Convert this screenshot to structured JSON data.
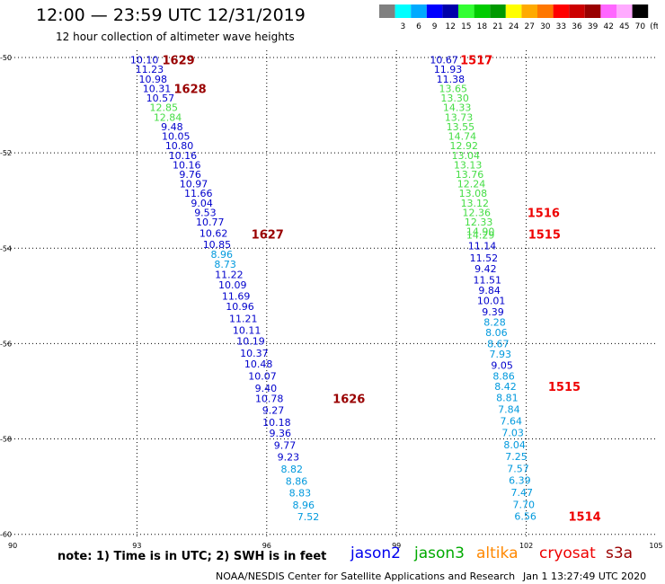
{
  "header": {
    "title": "12:00 — 23:59 UTC 12/31/2019",
    "subtitle": "12 hour collection of altimeter wave heights"
  },
  "legend": {
    "swatches": [
      {
        "color": "#808080",
        "label": ""
      },
      {
        "color": "#00ffff",
        "label": "3"
      },
      {
        "color": "#00aaff",
        "label": "6"
      },
      {
        "color": "#0000ff",
        "label": "9"
      },
      {
        "color": "#0000aa",
        "label": "12"
      },
      {
        "color": "#33ff33",
        "label": "15"
      },
      {
        "color": "#00cc00",
        "label": "18"
      },
      {
        "color": "#009900",
        "label": "21"
      },
      {
        "color": "#ffff00",
        "label": "24"
      },
      {
        "color": "#ffaa00",
        "label": "27"
      },
      {
        "color": "#ff7700",
        "label": "30"
      },
      {
        "color": "#ff0000",
        "label": "33"
      },
      {
        "color": "#cc0000",
        "label": "36"
      },
      {
        "color": "#990000",
        "label": "39"
      },
      {
        "color": "#ff66ff",
        "label": "42"
      },
      {
        "color": "#ffaaff",
        "label": "45"
      },
      {
        "color": "#000000",
        "label": "70"
      }
    ],
    "unit": "(ft)"
  },
  "chart_data": {
    "type": "scatter",
    "x_ticks": [
      "90",
      "93",
      "96",
      "99",
      "102",
      "105"
    ],
    "y_ticks": [
      "-50",
      "-52",
      "-54",
      "-56",
      "-58",
      "-60"
    ],
    "xlim": [
      90,
      105
    ],
    "ylim": [
      -60.1,
      -49.85
    ],
    "grid": true,
    "series": [
      {
        "points": [
          {
            "x": 93.17,
            "y": -50.05,
            "v": "10.10",
            "c": "#0000cc"
          },
          {
            "x": 93.29,
            "y": -50.25,
            "v": "11.23",
            "c": "#0000cc"
          },
          {
            "x": 93.37,
            "y": -50.45,
            "v": "10.98",
            "c": "#0000cc"
          },
          {
            "x": 93.46,
            "y": -50.65,
            "v": "10.31",
            "c": "#0000cc"
          },
          {
            "x": 93.54,
            "y": -50.85,
            "v": "10.57",
            "c": "#0000cc"
          },
          {
            "x": 93.62,
            "y": -51.05,
            "v": "12.85",
            "c": "#44dd44"
          },
          {
            "x": 93.71,
            "y": -51.25,
            "v": "12.84",
            "c": "#44dd44"
          },
          {
            "x": 93.81,
            "y": -51.45,
            "v": "9.48",
            "c": "#0000cc"
          },
          {
            "x": 93.9,
            "y": -51.65,
            "v": "10.05",
            "c": "#0000cc"
          },
          {
            "x": 93.98,
            "y": -51.85,
            "v": "10.80",
            "c": "#0000cc"
          },
          {
            "x": 94.06,
            "y": -52.05,
            "v": "10.16",
            "c": "#0000cc"
          },
          {
            "x": 94.15,
            "y": -52.25,
            "v": "10.16",
            "c": "#0000cc"
          },
          {
            "x": 94.23,
            "y": -52.45,
            "v": "9.76",
            "c": "#0000cc"
          },
          {
            "x": 94.31,
            "y": -52.65,
            "v": "10.97",
            "c": "#0000cc"
          },
          {
            "x": 94.42,
            "y": -52.85,
            "v": "11.66",
            "c": "#0000cc"
          },
          {
            "x": 94.5,
            "y": -53.05,
            "v": "9.04",
            "c": "#0000cc"
          },
          {
            "x": 94.58,
            "y": -53.25,
            "v": "9.53",
            "c": "#0000cc"
          },
          {
            "x": 94.69,
            "y": -53.45,
            "v": "10.77",
            "c": "#0000cc"
          },
          {
            "x": 94.77,
            "y": -53.68,
            "v": "10.62",
            "c": "#0000cc"
          },
          {
            "x": 94.85,
            "y": -53.92,
            "v": "10.85",
            "c": "#0000cc"
          },
          {
            "x": 94.96,
            "y": -54.13,
            "v": "8.96",
            "c": "#0099dd"
          },
          {
            "x": 95.04,
            "y": -54.33,
            "v": "8.73",
            "c": "#0099dd"
          },
          {
            "x": 95.13,
            "y": -54.55,
            "v": "11.22",
            "c": "#0000cc"
          },
          {
            "x": 95.21,
            "y": -54.77,
            "v": "10.09",
            "c": "#0000cc"
          },
          {
            "x": 95.29,
            "y": -55.0,
            "v": "11.69",
            "c": "#0000cc"
          },
          {
            "x": 95.38,
            "y": -55.22,
            "v": "10.96",
            "c": "#0000cc"
          },
          {
            "x": 95.46,
            "y": -55.47,
            "v": "11.21",
            "c": "#0000cc"
          },
          {
            "x": 95.54,
            "y": -55.72,
            "v": "10.11",
            "c": "#0000cc"
          },
          {
            "x": 95.63,
            "y": -55.95,
            "v": "10.19",
            "c": "#0000cc"
          },
          {
            "x": 95.71,
            "y": -56.2,
            "v": "10.37",
            "c": "#0000cc"
          },
          {
            "x": 95.81,
            "y": -56.43,
            "v": "10.48",
            "c": "#0000cc"
          },
          {
            "x": 95.9,
            "y": -56.68,
            "v": "10.07",
            "c": "#0000cc"
          },
          {
            "x": 95.98,
            "y": -56.93,
            "v": "9.40",
            "c": "#0000cc"
          },
          {
            "x": 96.06,
            "y": -57.15,
            "v": "10.78",
            "c": "#0000cc"
          },
          {
            "x": 96.15,
            "y": -57.4,
            "v": "9.27",
            "c": "#0000cc"
          },
          {
            "x": 96.23,
            "y": -57.65,
            "v": "10.18",
            "c": "#0000cc"
          },
          {
            "x": 96.31,
            "y": -57.88,
            "v": "9.36",
            "c": "#0000cc"
          },
          {
            "x": 96.42,
            "y": -58.13,
            "v": "9.77",
            "c": "#0000cc"
          },
          {
            "x": 96.5,
            "y": -58.38,
            "v": "9.23",
            "c": "#0000cc"
          },
          {
            "x": 96.58,
            "y": -58.63,
            "v": "8.82",
            "c": "#0099dd"
          },
          {
            "x": 96.69,
            "y": -58.88,
            "v": "8.86",
            "c": "#0099dd"
          },
          {
            "x": 96.77,
            "y": -59.13,
            "v": "8.83",
            "c": "#0099dd"
          },
          {
            "x": 96.85,
            "y": -59.38,
            "v": "8.96",
            "c": "#0099dd"
          },
          {
            "x": 96.96,
            "y": -59.63,
            "v": "7.52",
            "c": "#0099dd"
          }
        ]
      },
      {
        "points": [
          {
            "x": 100.1,
            "y": -50.05,
            "v": "10.67",
            "c": "#0000cc"
          },
          {
            "x": 100.19,
            "y": -50.25,
            "v": "11.93",
            "c": "#0000cc"
          },
          {
            "x": 100.25,
            "y": -50.45,
            "v": "11.38",
            "c": "#0000cc"
          },
          {
            "x": 100.31,
            "y": -50.65,
            "v": "13.65",
            "c": "#44dd44"
          },
          {
            "x": 100.35,
            "y": -50.85,
            "v": "13.30",
            "c": "#44dd44"
          },
          {
            "x": 100.4,
            "y": -51.05,
            "v": "14.33",
            "c": "#44dd44"
          },
          {
            "x": 100.44,
            "y": -51.25,
            "v": "13.73",
            "c": "#44dd44"
          },
          {
            "x": 100.48,
            "y": -51.45,
            "v": "13.55",
            "c": "#44dd44"
          },
          {
            "x": 100.52,
            "y": -51.65,
            "v": "14.74",
            "c": "#44dd44"
          },
          {
            "x": 100.56,
            "y": -51.85,
            "v": "12.92",
            "c": "#44dd44"
          },
          {
            "x": 100.6,
            "y": -52.05,
            "v": "13.04",
            "c": "#44dd44"
          },
          {
            "x": 100.65,
            "y": -52.25,
            "v": "13.13",
            "c": "#44dd44"
          },
          {
            "x": 100.69,
            "y": -52.45,
            "v": "13.76",
            "c": "#44dd44"
          },
          {
            "x": 100.73,
            "y": -52.65,
            "v": "12.24",
            "c": "#44dd44"
          },
          {
            "x": 100.77,
            "y": -52.85,
            "v": "13.08",
            "c": "#44dd44"
          },
          {
            "x": 100.81,
            "y": -53.05,
            "v": "13.12",
            "c": "#44dd44"
          },
          {
            "x": 100.85,
            "y": -53.25,
            "v": "12.36",
            "c": "#44dd44"
          },
          {
            "x": 100.9,
            "y": -53.45,
            "v": "12.33",
            "c": "#44dd44"
          },
          {
            "x": 100.94,
            "y": -53.65,
            "v": "14.90",
            "c": "#44dd44"
          },
          {
            "x": 100.94,
            "y": -53.72,
            "v": "14.29",
            "c": "#44dd44"
          },
          {
            "x": 100.98,
            "y": -53.95,
            "v": "11.14",
            "c": "#0000cc"
          },
          {
            "x": 101.02,
            "y": -54.2,
            "v": "11.52",
            "c": "#0000cc"
          },
          {
            "x": 101.06,
            "y": -54.43,
            "v": "9.42",
            "c": "#0000cc"
          },
          {
            "x": 101.1,
            "y": -54.66,
            "v": "11.51",
            "c": "#0000cc"
          },
          {
            "x": 101.15,
            "y": -54.88,
            "v": "9.84",
            "c": "#0000cc"
          },
          {
            "x": 101.19,
            "y": -55.1,
            "v": "10.01",
            "c": "#0000cc"
          },
          {
            "x": 101.23,
            "y": -55.33,
            "v": "9.39",
            "c": "#0000cc"
          },
          {
            "x": 101.27,
            "y": -55.55,
            "v": "8.28",
            "c": "#0099dd"
          },
          {
            "x": 101.31,
            "y": -55.77,
            "v": "8.06",
            "c": "#0099dd"
          },
          {
            "x": 101.35,
            "y": -56.0,
            "v": "8.67",
            "c": "#0099dd"
          },
          {
            "x": 101.4,
            "y": -56.22,
            "v": "7.93",
            "c": "#0099dd"
          },
          {
            "x": 101.44,
            "y": -56.45,
            "v": "9.05",
            "c": "#0000cc"
          },
          {
            "x": 101.48,
            "y": -56.68,
            "v": "8.86",
            "c": "#0099dd"
          },
          {
            "x": 101.52,
            "y": -56.9,
            "v": "8.42",
            "c": "#0099dd"
          },
          {
            "x": 101.56,
            "y": -57.13,
            "v": "8.81",
            "c": "#0099dd"
          },
          {
            "x": 101.6,
            "y": -57.38,
            "v": "7.84",
            "c": "#0099dd"
          },
          {
            "x": 101.65,
            "y": -57.62,
            "v": "7.64",
            "c": "#0099dd"
          },
          {
            "x": 101.69,
            "y": -57.87,
            "v": "7.03",
            "c": "#0099dd"
          },
          {
            "x": 101.73,
            "y": -58.12,
            "v": "8.04",
            "c": "#0099dd"
          },
          {
            "x": 101.77,
            "y": -58.37,
            "v": "7.25",
            "c": "#0099dd"
          },
          {
            "x": 101.81,
            "y": -58.62,
            "v": "7.57",
            "c": "#0099dd"
          },
          {
            "x": 101.85,
            "y": -58.87,
            "v": "6.39",
            "c": "#0099dd"
          },
          {
            "x": 101.9,
            "y": -59.12,
            "v": "7.47",
            "c": "#0099dd"
          },
          {
            "x": 101.94,
            "y": -59.37,
            "v": "7.70",
            "c": "#0099dd"
          },
          {
            "x": 101.98,
            "y": -59.62,
            "v": "6.56",
            "c": "#0099dd"
          }
        ]
      }
    ],
    "annotations": [
      {
        "x": 93.96,
        "y": -50.05,
        "text": "1629",
        "c": "#990000"
      },
      {
        "x": 94.23,
        "y": -50.65,
        "text": "1628",
        "c": "#990000"
      },
      {
        "x": 96.02,
        "y": -53.7,
        "text": "1627",
        "c": "#990000"
      },
      {
        "x": 97.9,
        "y": -57.15,
        "text": "1626",
        "c": "#990000"
      },
      {
        "x": 100.85,
        "y": -50.05,
        "text": "1517",
        "c": "#ee0000"
      },
      {
        "x": 102.4,
        "y": -53.25,
        "text": "1516",
        "c": "#ee0000"
      },
      {
        "x": 102.42,
        "y": -53.7,
        "text": "1515",
        "c": "#ee0000"
      },
      {
        "x": 102.88,
        "y": -56.9,
        "text": "1515",
        "c": "#ee0000"
      },
      {
        "x": 103.35,
        "y": -59.62,
        "text": "1514",
        "c": "#ee0000"
      }
    ]
  },
  "footer": {
    "note": "note: 1) Time is in UTC; 2) SWH is in feet",
    "satellites": [
      {
        "name": "jason2",
        "color": "#0000ee"
      },
      {
        "name": "jason3",
        "color": "#00aa00"
      },
      {
        "name": "altika",
        "color": "#ff8800"
      },
      {
        "name": "cryosat",
        "color": "#ee0000"
      },
      {
        "name": "s3a",
        "color": "#990000"
      }
    ],
    "credit": "NOAA/NESDIS Center for Satellite Applications and Research",
    "timestamp": "Jan  1 13:27:49 UTC 2020"
  }
}
